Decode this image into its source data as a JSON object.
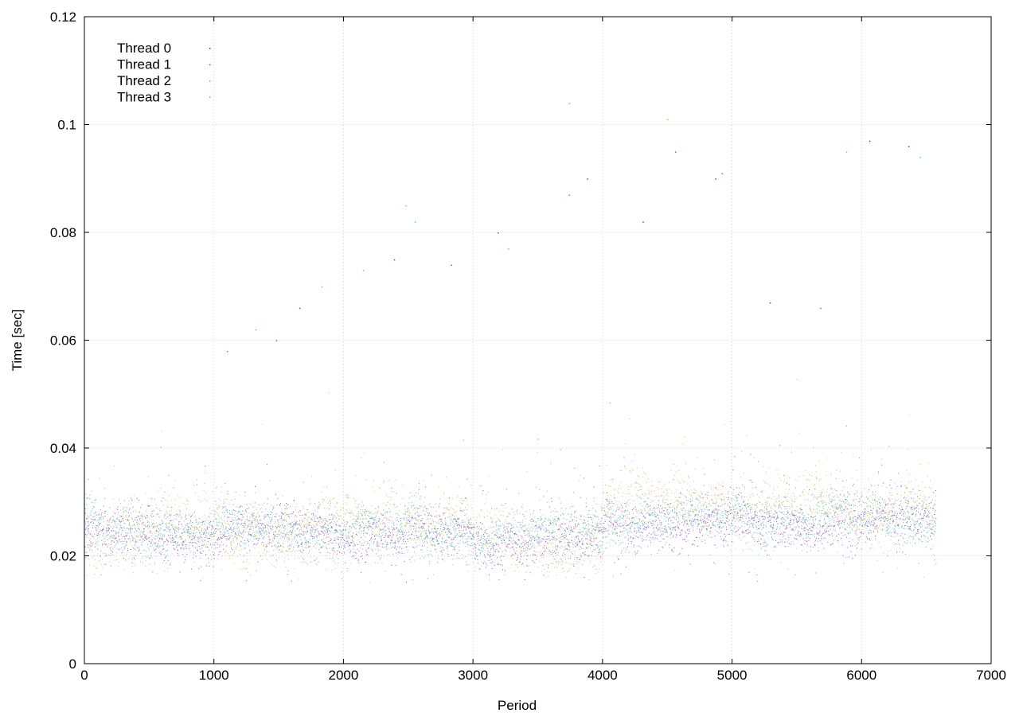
{
  "chart_data": {
    "type": "scatter",
    "title": "",
    "xlabel": "Period",
    "ylabel": "Time [sec]",
    "xlim": [
      0,
      7000
    ],
    "ylim": [
      0,
      0.12
    ],
    "xticks": [
      "0",
      "1000",
      "2000",
      "3000",
      "4000",
      "5000",
      "6000",
      "7000"
    ],
    "yticks": [
      "0",
      "0.02",
      "0.04",
      "0.06",
      "0.08",
      "0.1",
      "0.12"
    ],
    "grid": true,
    "legend_position": "top-left",
    "x_range_of_points": [
      0,
      6570
    ],
    "series": [
      {
        "name": "Thread 0",
        "color": "#9400d3",
        "segments": [
          {
            "x": [
              0,
              1000
            ],
            "y": 0.024
          },
          {
            "x": [
              1000,
              2000
            ],
            "y": 0.0245
          },
          {
            "x": [
              2000,
              3000
            ],
            "y": 0.024
          },
          {
            "x": [
              3000,
              4000
            ],
            "y": 0.023
          },
          {
            "x": [
              4000,
              5000
            ],
            "y": 0.026
          },
          {
            "x": [
              5000,
              6570
            ],
            "y": 0.026
          }
        ],
        "outliers": [
          {
            "x": 1660,
            "y": 0.066
          },
          {
            "x": 2390,
            "y": 0.075
          },
          {
            "x": 3190,
            "y": 0.08
          },
          {
            "x": 3880,
            "y": 0.09
          },
          {
            "x": 4310,
            "y": 0.082
          },
          {
            "x": 4870,
            "y": 0.09
          },
          {
            "x": 5290,
            "y": 0.067
          },
          {
            "x": 6060,
            "y": 0.097
          },
          {
            "x": 6360,
            "y": 0.096
          }
        ]
      },
      {
        "name": "Thread 1",
        "color": "#009e73",
        "segments": [
          {
            "x": [
              0,
              1000
            ],
            "y": 0.025
          },
          {
            "x": [
              1000,
              2000
            ],
            "y": 0.025
          },
          {
            "x": [
              2000,
              3000
            ],
            "y": 0.025
          },
          {
            "x": [
              3000,
              4000
            ],
            "y": 0.024
          },
          {
            "x": [
              4000,
              5000
            ],
            "y": 0.027
          },
          {
            "x": [
              5000,
              6570
            ],
            "y": 0.027
          }
        ],
        "outliers": [
          {
            "x": 1100,
            "y": 0.058
          },
          {
            "x": 1480,
            "y": 0.06
          },
          {
            "x": 2830,
            "y": 0.074
          },
          {
            "x": 3740,
            "y": 0.087
          },
          {
            "x": 4560,
            "y": 0.095
          },
          {
            "x": 4920,
            "y": 0.091
          },
          {
            "x": 5680,
            "y": 0.066
          }
        ]
      },
      {
        "name": "Thread 2",
        "color": "#56b4e9",
        "segments": [
          {
            "x": [
              0,
              1000
            ],
            "y": 0.024
          },
          {
            "x": [
              1000,
              2000
            ],
            "y": 0.024
          },
          {
            "x": [
              2000,
              3000
            ],
            "y": 0.024
          },
          {
            "x": [
              3000,
              4000
            ],
            "y": 0.023
          },
          {
            "x": [
              4000,
              5000
            ],
            "y": 0.027
          },
          {
            "x": [
              5000,
              6570
            ],
            "y": 0.027
          }
        ],
        "outliers": [
          {
            "x": 1320,
            "y": 0.062
          },
          {
            "x": 2550,
            "y": 0.082
          },
          {
            "x": 3270,
            "y": 0.077
          },
          {
            "x": 3740,
            "y": 0.104
          },
          {
            "x": 6450,
            "y": 0.094
          }
        ]
      },
      {
        "name": "Thread 3",
        "color": "#e69f00",
        "segments": [
          {
            "x": [
              0,
              1000
            ],
            "y": 0.025
          },
          {
            "x": [
              1000,
              2000
            ],
            "y": 0.025
          },
          {
            "x": [
              2000,
              3000
            ],
            "y": 0.026
          },
          {
            "x": [
              3000,
              4000
            ],
            "y": 0.023
          },
          {
            "x": [
              4000,
              5000
            ],
            "y": 0.03
          },
          {
            "x": [
              5000,
              6570
            ],
            "y": 0.029
          }
        ],
        "outliers": [
          {
            "x": 1830,
            "y": 0.07
          },
          {
            "x": 2150,
            "y": 0.073
          },
          {
            "x": 2480,
            "y": 0.085
          },
          {
            "x": 4500,
            "y": 0.101
          },
          {
            "x": 5880,
            "y": 0.095
          }
        ]
      }
    ]
  }
}
